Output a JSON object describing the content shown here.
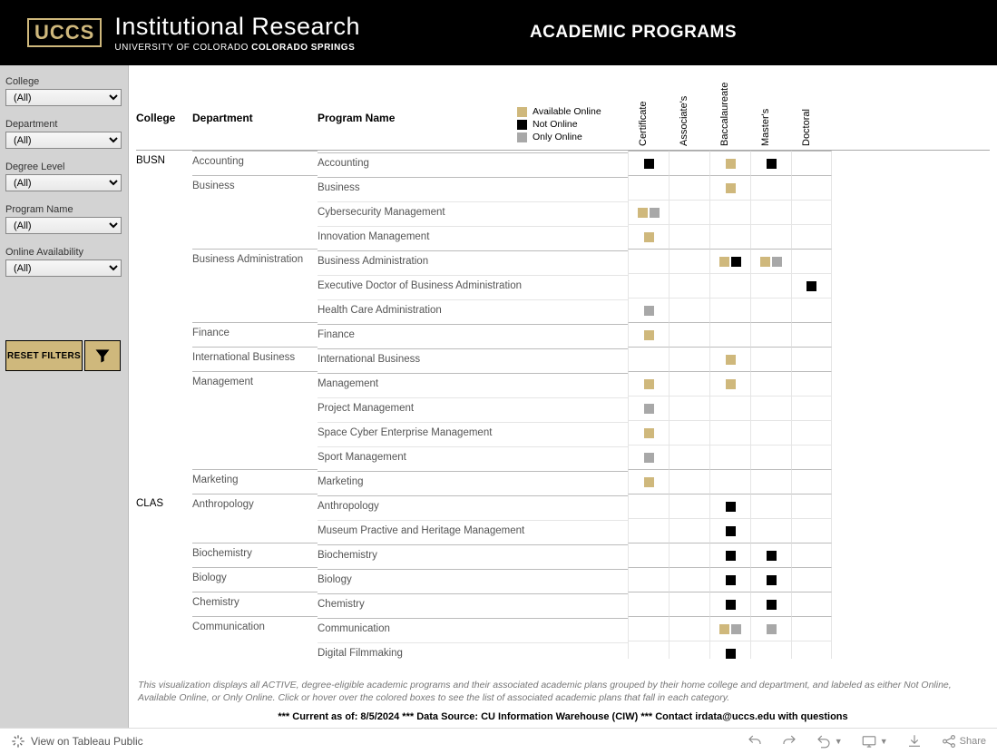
{
  "header": {
    "logo_badge": "UCCS",
    "logo_main": "Institutional Research",
    "logo_sub_plain": "UNIVERSITY OF COLORADO ",
    "logo_sub_bold": "COLORADO SPRINGS",
    "title": "ACADEMIC PROGRAMS"
  },
  "filters": [
    {
      "label": "College",
      "value": "(All)"
    },
    {
      "label": "Department",
      "value": "(All)"
    },
    {
      "label": "Degree Level",
      "value": "(All)"
    },
    {
      "label": "Program Name",
      "value": "(All)"
    },
    {
      "label": "Online Availability",
      "value": "(All)"
    }
  ],
  "reset_label": "RESET FILTERS",
  "legend": {
    "items": [
      {
        "label": "Available Online",
        "color": "#cfb87c"
      },
      {
        "label": "Not Online",
        "color": "#000000"
      },
      {
        "label": "Only Online",
        "color": "#a8a8a8"
      }
    ]
  },
  "columns": {
    "college": "College",
    "department": "Department",
    "program": "Program Name",
    "degrees": [
      "Certificate",
      "Associate's",
      "Baccalaureate",
      "Master's",
      "Doctoral"
    ]
  },
  "colors": {
    "avail": "#cfb87c",
    "not": "#000000",
    "only": "#a8a8a8"
  },
  "rows": [
    {
      "college": "BUSN",
      "dept": "Accounting",
      "program": "Accounting",
      "newCollege": true,
      "newDept": true,
      "cells": [
        [
          "not"
        ],
        [],
        [
          "avail"
        ],
        [
          "not"
        ],
        []
      ]
    },
    {
      "dept": "Business",
      "program": "Business",
      "newDept": true,
      "cells": [
        [],
        [],
        [
          "avail"
        ],
        [],
        []
      ]
    },
    {
      "program": "Cybersecurity Management",
      "cells": [
        [
          "avail",
          "only"
        ],
        [],
        [],
        [],
        []
      ]
    },
    {
      "program": "Innovation Management",
      "cells": [
        [
          "avail"
        ],
        [],
        [],
        [],
        []
      ]
    },
    {
      "dept": "Business Administration",
      "program": "Business Administration",
      "newDept": true,
      "cells": [
        [],
        [],
        [
          "avail",
          "not"
        ],
        [
          "avail",
          "only"
        ],
        []
      ]
    },
    {
      "program": "Executive Doctor of Business Administration",
      "cells": [
        [],
        [],
        [],
        [],
        [
          "not"
        ]
      ]
    },
    {
      "program": "Health Care Administration",
      "cells": [
        [
          "only"
        ],
        [],
        [],
        [],
        []
      ]
    },
    {
      "dept": "Finance",
      "program": "Finance",
      "newDept": true,
      "cells": [
        [
          "avail"
        ],
        [],
        [],
        [],
        []
      ]
    },
    {
      "dept": "International Business",
      "program": "International Business",
      "newDept": true,
      "cells": [
        [],
        [],
        [
          "avail"
        ],
        [],
        []
      ]
    },
    {
      "dept": "Management",
      "program": "Management",
      "newDept": true,
      "cells": [
        [
          "avail"
        ],
        [],
        [
          "avail"
        ],
        [],
        []
      ]
    },
    {
      "program": "Project Management",
      "cells": [
        [
          "only"
        ],
        [],
        [],
        [],
        []
      ]
    },
    {
      "program": "Space Cyber Enterprise Management",
      "cells": [
        [
          "avail"
        ],
        [],
        [],
        [],
        []
      ]
    },
    {
      "program": "Sport Management",
      "cells": [
        [
          "only"
        ],
        [],
        [],
        [],
        []
      ]
    },
    {
      "dept": "Marketing",
      "program": "Marketing",
      "newDept": true,
      "cells": [
        [
          "avail"
        ],
        [],
        [],
        [],
        []
      ]
    },
    {
      "college": "CLAS",
      "dept": "Anthropology",
      "program": "Anthropology",
      "newCollege": true,
      "newDept": true,
      "cells": [
        [],
        [],
        [
          "not"
        ],
        [],
        []
      ]
    },
    {
      "program": "Museum Practive and Heritage Management",
      "cells": [
        [],
        [],
        [
          "not"
        ],
        [],
        []
      ]
    },
    {
      "dept": "Biochemistry",
      "program": "Biochemistry",
      "newDept": true,
      "cells": [
        [],
        [],
        [
          "not"
        ],
        [
          "not"
        ],
        []
      ]
    },
    {
      "dept": "Biology",
      "program": "Biology",
      "newDept": true,
      "cells": [
        [],
        [],
        [
          "not"
        ],
        [
          "not"
        ],
        []
      ]
    },
    {
      "dept": "Chemistry",
      "program": "Chemistry",
      "newDept": true,
      "cells": [
        [],
        [],
        [
          "not"
        ],
        [
          "not"
        ],
        []
      ]
    },
    {
      "dept": "Communication",
      "program": "Communication",
      "newDept": true,
      "cells": [
        [],
        [],
        [
          "avail",
          "only"
        ],
        [
          "only"
        ],
        []
      ]
    },
    {
      "program": "Digital Filmmaking",
      "cells": [
        [],
        [],
        [
          "not"
        ],
        [],
        []
      ]
    }
  ],
  "footer_note": "This visualization displays all ACTIVE, degree-eligible academic programs and their associated academic plans grouped by their home college and department, and labeled as either Not Online, Available Online, or Only Online. Click or hover over the colored boxes to see the list of associated academic plans that fall in each category.",
  "footer_meta": "*** Current as of: 8/5/2024 *** Data Source: CU Information Warehouse (CIW) *** Contact irdata@uccs.edu with questions",
  "bottom": {
    "view": "View on Tableau Public",
    "share": "Share"
  }
}
